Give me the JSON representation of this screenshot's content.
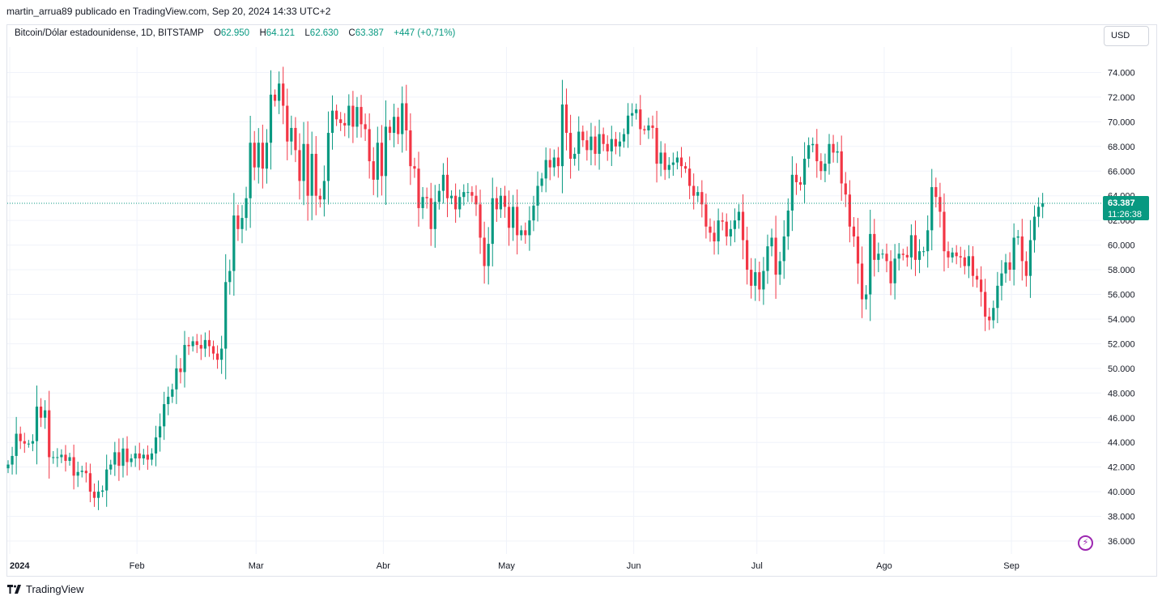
{
  "header": {
    "publisher_line": "martin_arrua89 publicado en TradingView.com, Sep 20, 2024 14:33 UTC+2"
  },
  "legend": {
    "symbol": "Bitcoin/Dólar estadounidense, 1D, BITSTAMP",
    "o_label": "O",
    "o_value": "62.950",
    "h_label": "H",
    "h_value": "64.121",
    "l_label": "L",
    "l_value": "62.630",
    "c_label": "C",
    "c_value": "63.387",
    "change": "+447 (+0,71%)"
  },
  "currency_button": "USD",
  "footer": {
    "brand": "TradingView"
  },
  "price_badge": {
    "price": "63.387",
    "countdown": "11:26:38"
  },
  "colors": {
    "up": "#089981",
    "down": "#f23645",
    "grid": "#f0f3fa",
    "axis_text": "#131722"
  },
  "icons": {
    "alert": "lightning-bolt-icon",
    "brand": "tradingview-logo-icon"
  },
  "chart_data": {
    "type": "candlestick",
    "symbol": "BTCUSD",
    "timeframe": "1D",
    "ylim": [
      35000,
      76000
    ],
    "y_ticks": [
      "36.000",
      "38.000",
      "40.000",
      "42.000",
      "44.000",
      "46.000",
      "48.000",
      "50.000",
      "52.000",
      "54.000",
      "56.000",
      "58.000",
      "60.000",
      "62.000",
      "64.000",
      "66.000",
      "68.000",
      "70.000",
      "72.000",
      "74.000"
    ],
    "y_tick_values": [
      36000,
      38000,
      40000,
      42000,
      44000,
      46000,
      48000,
      50000,
      52000,
      54000,
      56000,
      58000,
      60000,
      62000,
      64000,
      66000,
      68000,
      70000,
      72000,
      74000
    ],
    "x_ticks": [
      {
        "label": "2024",
        "day": 0
      },
      {
        "label": "Feb",
        "day": 31
      },
      {
        "label": "Mar",
        "day": 60
      },
      {
        "label": "Abr",
        "day": 91
      },
      {
        "label": "May",
        "day": 121
      },
      {
        "label": "Jun",
        "day": 152
      },
      {
        "label": "Jul",
        "day": 182
      },
      {
        "label": "Ago",
        "day": 213
      },
      {
        "label": "Sep",
        "day": 244
      }
    ],
    "last_price": 63387,
    "x_start": "2024-01-01",
    "closes": [
      42200,
      42900,
      44700,
      44100,
      43900,
      43900,
      44100,
      46900,
      46000,
      46600,
      42800,
      42800,
      42800,
      43000,
      42500,
      42800,
      41300,
      41600,
      41700,
      41500,
      40000,
      39500,
      40000,
      40100,
      41800,
      42200,
      43200,
      42100,
      43500,
      42400,
      42700,
      43100,
      42700,
      43000,
      42600,
      43100,
      44400,
      45300,
      47100,
      47700,
      48300,
      50000,
      49700,
      51900,
      51800,
      52200,
      51900,
      51600,
      52300,
      51800,
      51200,
      50700,
      51600,
      57000,
      57900,
      62400,
      61300,
      62200,
      63800,
      68300,
      66300,
      68300,
      66200,
      68300,
      72200,
      71700,
      73100,
      71300,
      68400,
      69500,
      67700,
      65200,
      68200,
      64000,
      67400,
      64000,
      63700,
      65200,
      69100,
      70900,
      70200,
      69900,
      69700,
      71300,
      69600,
      71200,
      69800,
      69400,
      66800,
      65300,
      68300,
      65600,
      69600,
      69100,
      70400,
      69000,
      71500,
      69300,
      66400,
      66200,
      63000,
      63900,
      63800,
      61300,
      63500,
      64400,
      65700,
      63800,
      64000,
      62900,
      63900,
      64300,
      64300,
      64000,
      63300,
      60600,
      58300,
      60100,
      63800,
      62900,
      64000,
      63100,
      61400,
      63100,
      60800,
      61200,
      60800,
      62000,
      63200,
      64800,
      65400,
      66900,
      66300,
      67100,
      66400,
      71400,
      69100,
      67000,
      67400,
      69200,
      68500,
      67700,
      68800,
      67400,
      69000,
      68200,
      67600,
      68600,
      68000,
      68400,
      69000,
      70500,
      70700,
      71000,
      69400,
      69300,
      69700,
      69500,
      66600,
      67500,
      66100,
      66500,
      66700,
      67100,
      66400,
      66200,
      64800,
      64000,
      64300,
      63300,
      61500,
      61000,
      60300,
      62000,
      61900,
      60700,
      61300,
      62000,
      62700,
      60400,
      58000,
      56700,
      57800,
      56400,
      57900,
      59900,
      60600,
      57600,
      58700,
      60700,
      62800,
      65700,
      65100,
      64900,
      67000,
      68100,
      68200,
      66800,
      66000,
      66600,
      68200,
      67500,
      67600,
      65000,
      64100,
      61500,
      60700,
      58500,
      55600,
      56000,
      60900,
      58800,
      59300,
      59300,
      58700,
      56900,
      58900,
      59300,
      59200,
      59000,
      60800,
      58800,
      59500,
      59500,
      61200,
      64700,
      63900,
      62700,
      59500,
      59000,
      59400,
      59100,
      59000,
      58300,
      59100,
      57500,
      57200,
      56200,
      54200,
      53900,
      54900,
      56700,
      57700,
      58600,
      58000,
      60600,
      60700,
      58700,
      57500,
      60400,
      62300,
      63100,
      63400
    ]
  }
}
